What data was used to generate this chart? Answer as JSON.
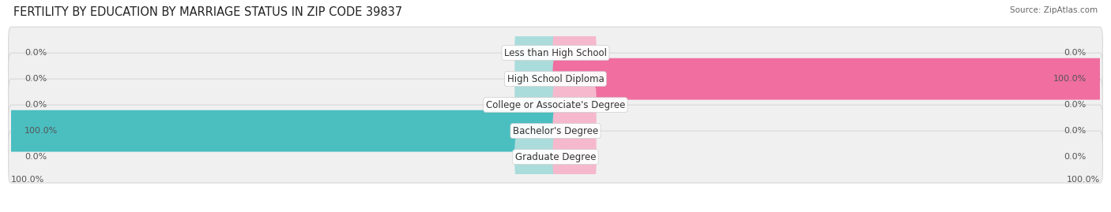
{
  "title": "FERTILITY BY EDUCATION BY MARRIAGE STATUS IN ZIP CODE 39837",
  "source": "Source: ZipAtlas.com",
  "categories": [
    "Less than High School",
    "High School Diploma",
    "College or Associate's Degree",
    "Bachelor's Degree",
    "Graduate Degree"
  ],
  "married_values": [
    0.0,
    0.0,
    0.0,
    100.0,
    0.0
  ],
  "unmarried_values": [
    0.0,
    100.0,
    0.0,
    0.0,
    0.0
  ],
  "married_color": "#4bbec0",
  "unmarried_color": "#f06ea0",
  "married_light_color": "#aadcdc",
  "unmarried_light_color": "#f5b8cc",
  "row_bg_color": "#f0f0f0",
  "row_border_color": "#d8d8d8",
  "title_fontsize": 10.5,
  "label_fontsize": 8.5,
  "value_fontsize": 8.0,
  "stub_size": 7.0,
  "figsize": [
    14.06,
    2.69
  ],
  "dpi": 100
}
